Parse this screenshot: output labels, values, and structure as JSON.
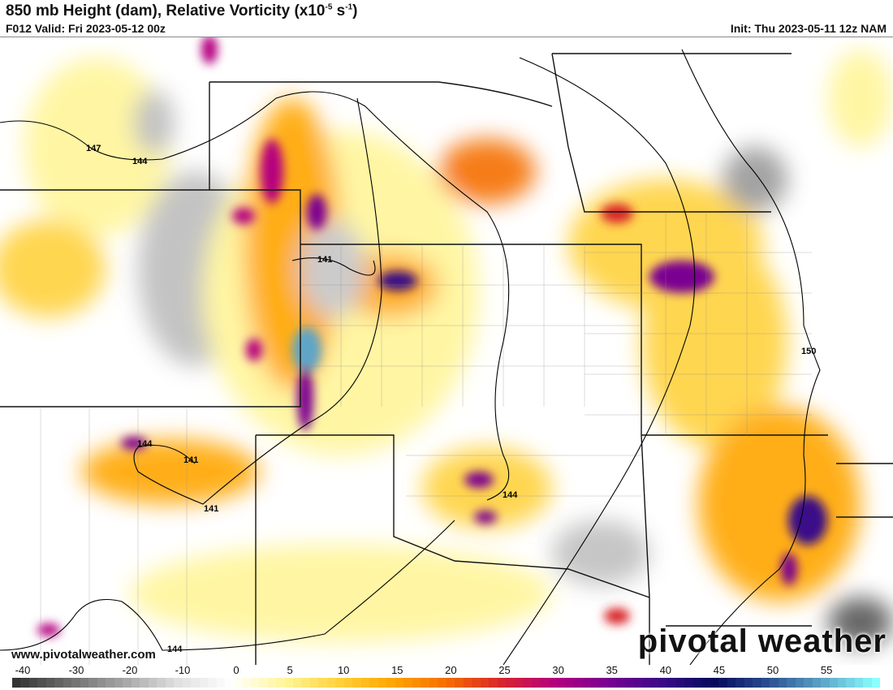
{
  "header": {
    "title_main": "850 mb Height (dam), Relative Vorticity (x10",
    "title_exp1": "-5",
    "title_mid": " s",
    "title_exp2": "-1",
    "title_end": ")",
    "valid": "F012 Valid: Fri 2023-05-12 00z",
    "init": "Init: Thu 2023-05-11 12z NAM"
  },
  "map": {
    "contour_labels": [
      "147",
      "144",
      "141",
      "144",
      "141",
      "141",
      "144",
      "150",
      "144"
    ]
  },
  "footer": {
    "url": "www.pivotalweather.com",
    "logo": "pivotal weather"
  },
  "colorbar": {
    "ticks": [
      "-40",
      "-30",
      "-20",
      "-10",
      "0",
      "5",
      "10",
      "15",
      "20",
      "25",
      "30",
      "35",
      "40",
      "45",
      "50",
      "55"
    ],
    "range": [
      -42,
      60
    ],
    "colors": [
      "#333333",
      "#6e6e6e",
      "#a6a6a6",
      "#e0e0e0",
      "#ffffff",
      "#fff59a",
      "#ffd23c",
      "#ffa600",
      "#f56e00",
      "#d8262a",
      "#b5007f",
      "#7a0091",
      "#3a0a88",
      "#050a5c",
      "#2b4f90",
      "#5ea5c8",
      "#8affff"
    ]
  }
}
